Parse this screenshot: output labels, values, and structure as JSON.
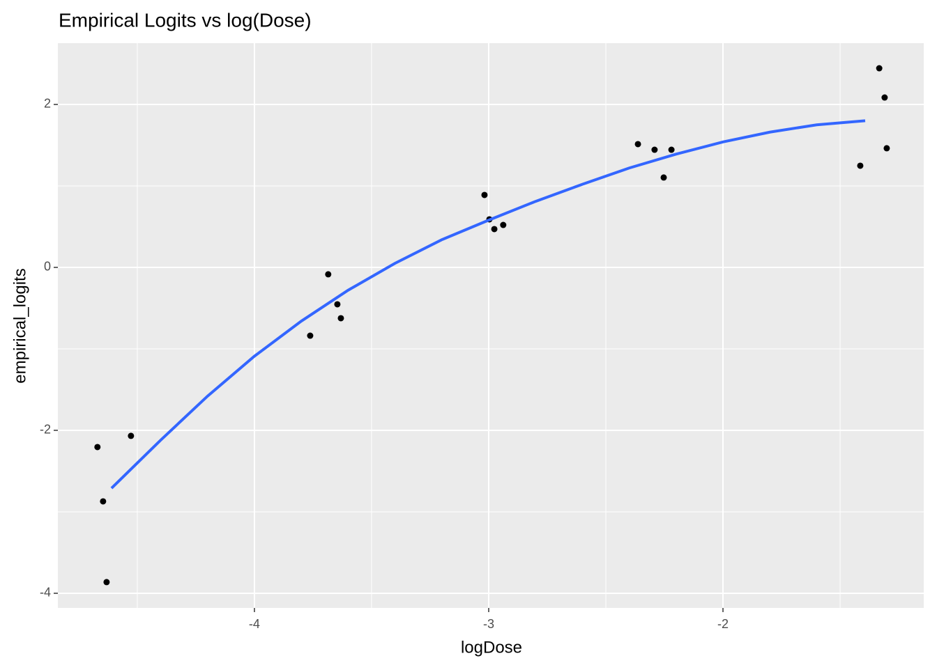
{
  "chart_data": {
    "type": "scatter",
    "title": "Empirical Logits vs log(Dose)",
    "x_label": "logDose",
    "y_label": "empirical_logits",
    "xlim": [
      -4.839,
      -1.143
    ],
    "ylim": [
      -4.18,
      2.752
    ],
    "xticks": [
      -4,
      -3,
      -2
    ],
    "yticks": [
      -4,
      -2,
      0,
      2
    ],
    "grid": true,
    "series": [
      {
        "color": "#000000",
        "x": [
          -4.67,
          -4.646,
          -4.631,
          -4.527,
          -3.762,
          -3.685,
          -3.646,
          -3.631,
          -3.018,
          -2.997,
          -2.976,
          -2.938,
          -2.363,
          -2.292,
          -2.253,
          -2.22,
          -1.414,
          -1.333,
          -1.31,
          -1.301
        ],
        "values": [
          -2.205,
          -2.872,
          -3.863,
          -2.068,
          -0.838,
          -0.085,
          -0.453,
          -0.624,
          0.889,
          0.59,
          0.47,
          0.521,
          1.513,
          1.444,
          1.103,
          1.444,
          1.248,
          2.444,
          2.085,
          1.462
        ]
      },
      {
        "type": "line",
        "color": "#3366ff",
        "x": [
          -4.61,
          -4.4,
          -4.2,
          -4.0,
          -3.8,
          -3.6,
          -3.4,
          -3.2,
          -3.0,
          -2.8,
          -2.6,
          -2.4,
          -2.2,
          -2.0,
          -1.8,
          -1.6,
          -1.393
        ],
        "values": [
          -2.71,
          -2.12,
          -1.58,
          -1.09,
          -0.66,
          -0.28,
          0.05,
          0.34,
          0.58,
          0.81,
          1.02,
          1.22,
          1.39,
          1.54,
          1.66,
          1.75,
          1.8
        ]
      }
    ]
  }
}
